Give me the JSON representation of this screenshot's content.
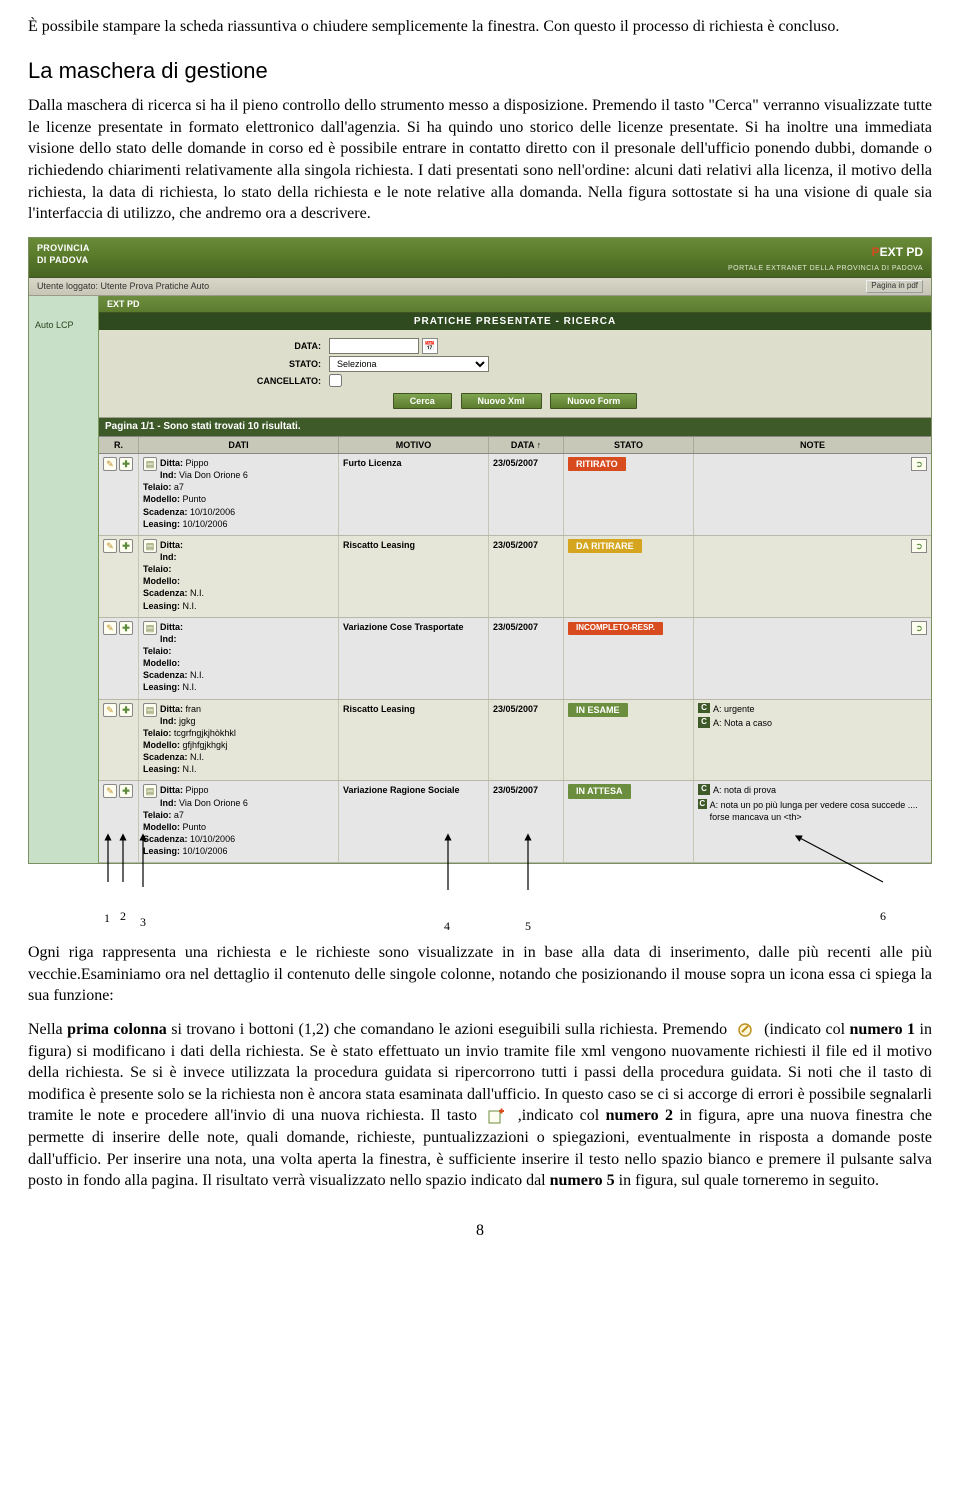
{
  "doc": {
    "para1": "È possibile stampare la scheda riassuntiva o chiudere semplicemente la finestra. Con questo il processo di richiesta è concluso.",
    "heading1": "La maschera di gestione",
    "para2": "Dalla maschera di ricerca si ha il pieno controllo dello strumento messo a disposizione. Premendo il tasto \"Cerca\" verranno visualizzate tutte le licenze presentate in formato elettronico dall'agenzia. Si ha quindo uno storico delle licenze presentate. Si ha inoltre una immediata visione dello stato delle domande in corso ed è possibile entrare in contatto diretto con il presonale dell'ufficio ponendo dubbi, domande o richiedendo chiarimenti relativamente alla singola richiesta. I dati presentati sono nell'ordine: alcuni dati relativi alla licenza, il motivo della richiesta, la data di richiesta, lo stato della richiesta e le note relative alla domanda. Nella figura sottostate si ha una visione di quale sia l'interfaccia di utilizzo, che andremo ora a descrivere.",
    "para3": "Ogni riga rappresenta una richiesta e le richieste sono visualizzate in in base alla data di inserimento, dalle più recenti alle più vecchie.Esaminiamo ora nel dettaglio il contenuto delle singole colonne, notando che posizionando il mouse sopra un icona essa ci spiega la sua funzione:",
    "para4a": "Nella ",
    "para4b": "prima colonna",
    "para4c": " si trovano i bottoni (1,2) che comandano le azioni eseguibili sulla richiesta. Premendo ",
    "para4d": " (indicato col ",
    "para4e": "numero 1",
    "para4f": " in figura) si modificano i dati della richiesta. Se è stato effettuato un invio tramite file xml vengono nuovamente richiesti il file ed il motivo della richiesta. Se si è invece utilizzata la procedura guidata si ripercorrono tutti i passi della procedura guidata. Si noti che il tasto di modifica è presente solo se la richiesta non è ancora stata esaminata dall'ufficio. In questo caso se ci si accorge di errori è possibile segnalarli tramite le note e procedere all'invio di una nuova richiesta. Il tasto ",
    "para4g": " ,indicato col ",
    "para4h": "numero 2",
    "para4i": " in figura, apre una nuova finestra che permette di inserire delle note, quali domande, richieste, puntualizzazioni o spiegazioni, eventualmente in risposta a domande poste dall'ufficio. Per inserire una nota, una volta aperta la finestra, è sufficiente inserire il testo nello spazio bianco e premere il pulsante salva posto in fondo alla pagina. Il risultato verrà visualizzato nello spazio indicato dal ",
    "para4j": "numero 5",
    "para4k": " in figura, sul quale torneremo in seguito.",
    "page_num": "8"
  },
  "portal": {
    "prov1": "PROVINCIA",
    "prov2": "DI PADOVA",
    "logo_p": "P",
    "logo_rest": "EXT PD",
    "subtitle": "PORTALE EXTRANET DELLA PROVINCIA DI PADOVA",
    "user_logged": "Utente loggato: Utente Prova Pratiche Auto",
    "pdf_btn": "Pagina in pdf",
    "ext_label": "EXT PD",
    "side_item": "Auto LCP",
    "title_bar": "PRATICHE PRESENTATE - RICERCA",
    "form": {
      "data_label": "DATA:",
      "stato_label": "STATO:",
      "stato_value": "Seleziona",
      "canc_label": "CANCELLATO:",
      "btn_cerca": "Cerca",
      "btn_xml": "Nuovo Xml",
      "btn_form": "Nuovo Form"
    },
    "pagination": "Pagina 1/1 - Sono stati trovati 10 risultati.",
    "headers": {
      "r": "R.",
      "dati": "DATI",
      "motivo": "MOTIVO",
      "data": "DATA ↑",
      "stato": "STATO",
      "note": "NOTE"
    },
    "rows": [
      {
        "alt": false,
        "icons": [
          "edit",
          "note"
        ],
        "dati": [
          "Ditta: Pippo",
          "Ind: Via Don Orione 6",
          "Telaio: a7",
          "Modello: Punto",
          "Scadenza: 10/10/2006",
          "Leasing: 10/10/2006"
        ],
        "motivo": "Furto Licenza",
        "data": "23/05/2007",
        "stato_text": "RITIRATO",
        "stato_class": "st-ritirato",
        "notes": [],
        "right_icon": true
      },
      {
        "alt": true,
        "icons": [
          "edit",
          "note"
        ],
        "dati": [
          "Ditta:",
          "Ind:",
          "Telaio:",
          "Modello:",
          "Scadenza: N.I.",
          "Leasing: N.I."
        ],
        "motivo": "Riscatto Leasing",
        "data": "23/05/2007",
        "stato_text": "DA RITIRARE",
        "stato_class": "st-daritir",
        "notes": [],
        "right_icon": true
      },
      {
        "alt": false,
        "icons": [
          "edit",
          "note"
        ],
        "dati": [
          "Ditta:",
          "Ind:",
          "Telaio:",
          "Modello:",
          "Scadenza: N.I.",
          "Leasing: N.I."
        ],
        "motivo": "Variazione Cose Trasportate",
        "data": "23/05/2007",
        "stato_text": "INCOMPLETO-RESP.",
        "stato_class": "st-incomp",
        "notes": [],
        "right_icon": true
      },
      {
        "alt": true,
        "icons": [
          "edit",
          "note"
        ],
        "dati": [
          "Ditta: fran",
          "Ind: jgkg",
          "Telaio: tcgrfngjkjhòkhkl",
          "Modello: gfjhfgjkhgkj",
          "Scadenza: N.I.",
          "Leasing: N.I."
        ],
        "motivo": "Riscatto Leasing",
        "data": "23/05/2007",
        "stato_text": "IN ESAME",
        "stato_class": "st-esame",
        "notes": [
          {
            "badge": "C",
            "text": "A: urgente"
          },
          {
            "badge": "C",
            "text": "A: Nota a caso"
          }
        ],
        "right_icon": false
      },
      {
        "alt": false,
        "icons": [
          "edit",
          "note"
        ],
        "dati": [
          "Ditta: Pippo",
          "Ind: Via Don Orione 6",
          "Telaio: a7",
          "Modello: Punto",
          "Scadenza: 10/10/2006",
          "Leasing: 10/10/2006"
        ],
        "motivo": "Variazione Ragione Sociale",
        "data": "23/05/2007",
        "stato_text": "IN ATTESA",
        "stato_class": "st-attesa",
        "notes": [
          {
            "badge": "C",
            "text": "A: nota di prova"
          },
          {
            "badge": "C",
            "text": "A: nota un po più lunga per vedere cosa succede .... forse mancava un <th>"
          }
        ],
        "right_icon": false
      }
    ]
  },
  "labels": {
    "n1": "1",
    "n2": "2",
    "n3": "3",
    "n4": "4",
    "n5": "5",
    "n6": "6"
  }
}
